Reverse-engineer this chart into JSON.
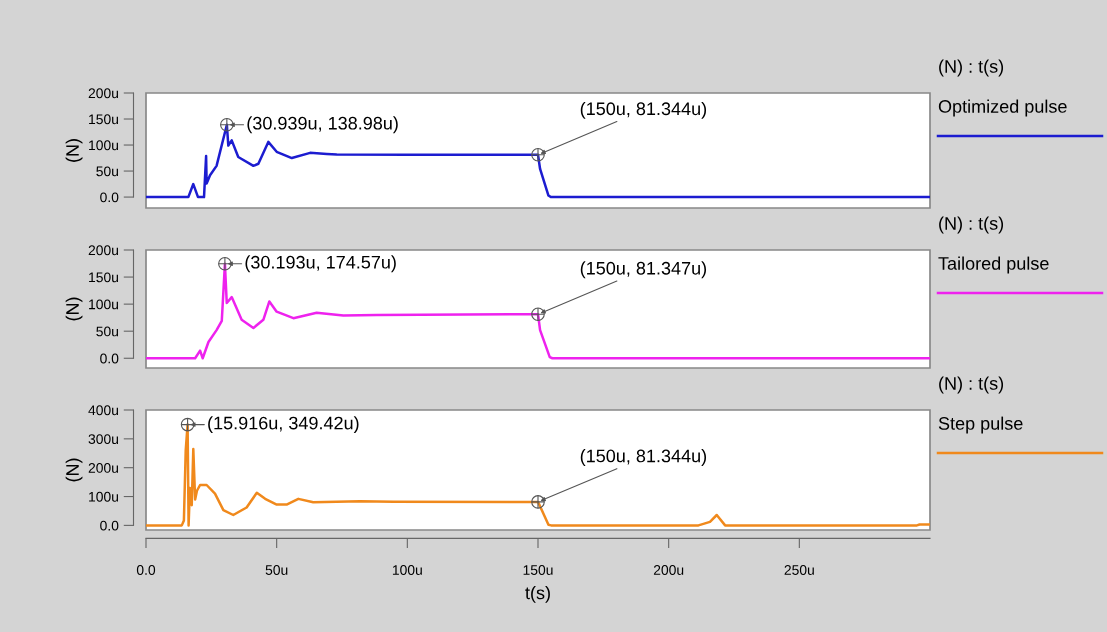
{
  "chart_data": [
    {
      "type": "line",
      "ylabel": "(N)",
      "legend_title": "(N) : t(s)",
      "legend": "right",
      "grid": false,
      "tick_labels": "y",
      "x": [
        0,
        16.2,
        18.1,
        19.9,
        22.2,
        23.0,
        23.2,
        24.5,
        27.0,
        30.939,
        31.5,
        32.8,
        35.3,
        41.1,
        43.0,
        46.8,
        50.0,
        55.8,
        62.8,
        69.2,
        73,
        100,
        150,
        150.8,
        154,
        155,
        300
      ],
      "series": [
        {
          "name": "Optimized pulse",
          "color": "#1c1cd0",
          "values": [
            0,
            0,
            25,
            0,
            0,
            79,
            26,
            42,
            60,
            138.98,
            99,
            109,
            77,
            60,
            64,
            106,
            87,
            75,
            85,
            83,
            82,
            81.3,
            81.344,
            54,
            3,
            0,
            0
          ]
        }
      ],
      "xlim": [
        0,
        300
      ],
      "ylim": [
        -21,
        200
      ],
      "yticks": [
        {
          "value": 0,
          "label": "0.0"
        },
        {
          "value": 50,
          "label": "50u"
        },
        {
          "value": 100,
          "label": "100u"
        },
        {
          "value": 150,
          "label": "150u"
        },
        {
          "value": 200,
          "label": "200u"
        }
      ],
      "annotations": [
        {
          "text": "(30.939u, 138.98u)",
          "x": 30.939,
          "y": 138.98
        },
        {
          "text": "(150u, 81.344u)",
          "x": 150,
          "y": 81.344
        }
      ]
    },
    {
      "type": "line",
      "ylabel": "(N)",
      "legend_title": "(N) : t(s)",
      "legend": "right",
      "grid": false,
      "tick_labels": "y",
      "x": [
        0,
        18.8,
        20.7,
        21.7,
        23.9,
        27,
        29.0,
        30.193,
        30.9,
        32.8,
        36.6,
        41.1,
        44.9,
        47.2,
        50,
        56.4,
        65.3,
        75.5,
        88.3,
        150,
        150.8,
        154.5,
        155.5,
        300
      ],
      "series": [
        {
          "name": "Tailored pulse",
          "color": "#ee22ee",
          "values": [
            0,
            0,
            14,
            0,
            30,
            52,
            69,
            174.57,
            102,
            113,
            71,
            56,
            71,
            105,
            86,
            74,
            84,
            79,
            80,
            81.347,
            52,
            2,
            0,
            0
          ]
        }
      ],
      "xlim": [
        0,
        300
      ],
      "ylim": [
        -18,
        200
      ],
      "yticks": [
        {
          "value": 0,
          "label": "0.0"
        },
        {
          "value": 50,
          "label": "50u"
        },
        {
          "value": 100,
          "label": "100u"
        },
        {
          "value": 150,
          "label": "150u"
        },
        {
          "value": 200,
          "label": "200u"
        }
      ],
      "annotations": [
        {
          "text": "(30.193u, 174.57u)",
          "x": 30.193,
          "y": 174.57
        },
        {
          "text": "(150u, 81.347u)",
          "x": 150,
          "y": 81.347
        }
      ]
    },
    {
      "type": "line",
      "ylabel": "(N)",
      "xlabel": "t(s)",
      "legend_title": "(N) : t(s)",
      "legend": "right",
      "grid": false,
      "x": [
        0,
        13.7,
        14.5,
        15.2,
        15.916,
        16.3,
        16.8,
        17.5,
        18.1,
        18.8,
        19.5,
        20.7,
        23.2,
        26.4,
        29.6,
        33.4,
        38.5,
        42.4,
        45.6,
        50,
        53.8,
        58.3,
        64.0,
        81.9,
        94.7,
        150,
        150.1,
        154,
        155,
        211.4,
        215.8,
        218.4,
        221.6,
        295,
        296,
        300
      ],
      "series": [
        {
          "name": "Step pulse",
          "color": "#f0891c",
          "values": [
            0,
            0,
            17,
            260,
            349.42,
            0,
            130,
            70,
            265,
            90,
            120,
            140,
            140,
            110,
            53,
            36,
            62,
            113,
            92,
            72,
            72,
            92,
            80,
            84,
            82,
            81.344,
            80,
            2,
            0,
            0,
            12,
            36,
            0,
            0,
            3,
            3
          ]
        }
      ],
      "xlim": [
        0,
        300
      ],
      "xticks": [
        {
          "value": 0,
          "label": "0.0"
        },
        {
          "value": 50,
          "label": "50u"
        },
        {
          "value": 100,
          "label": "100u"
        },
        {
          "value": 150,
          "label": "150u"
        },
        {
          "value": 200,
          "label": "200u"
        },
        {
          "value": 250,
          "label": "250u"
        }
      ],
      "ylim": [
        -16,
        400
      ],
      "yticks": [
        {
          "value": 0,
          "label": "0.0"
        },
        {
          "value": 100,
          "label": "100u"
        },
        {
          "value": 200,
          "label": "200u"
        },
        {
          "value": 300,
          "label": "300u"
        },
        {
          "value": 400,
          "label": "400u"
        }
      ],
      "annotations": [
        {
          "text": "(15.916u, 349.42u)",
          "x": 15.916,
          "y": 349.42
        },
        {
          "text": "(150u, 81.344u)",
          "x": 150,
          "y": 81.344
        }
      ]
    }
  ]
}
